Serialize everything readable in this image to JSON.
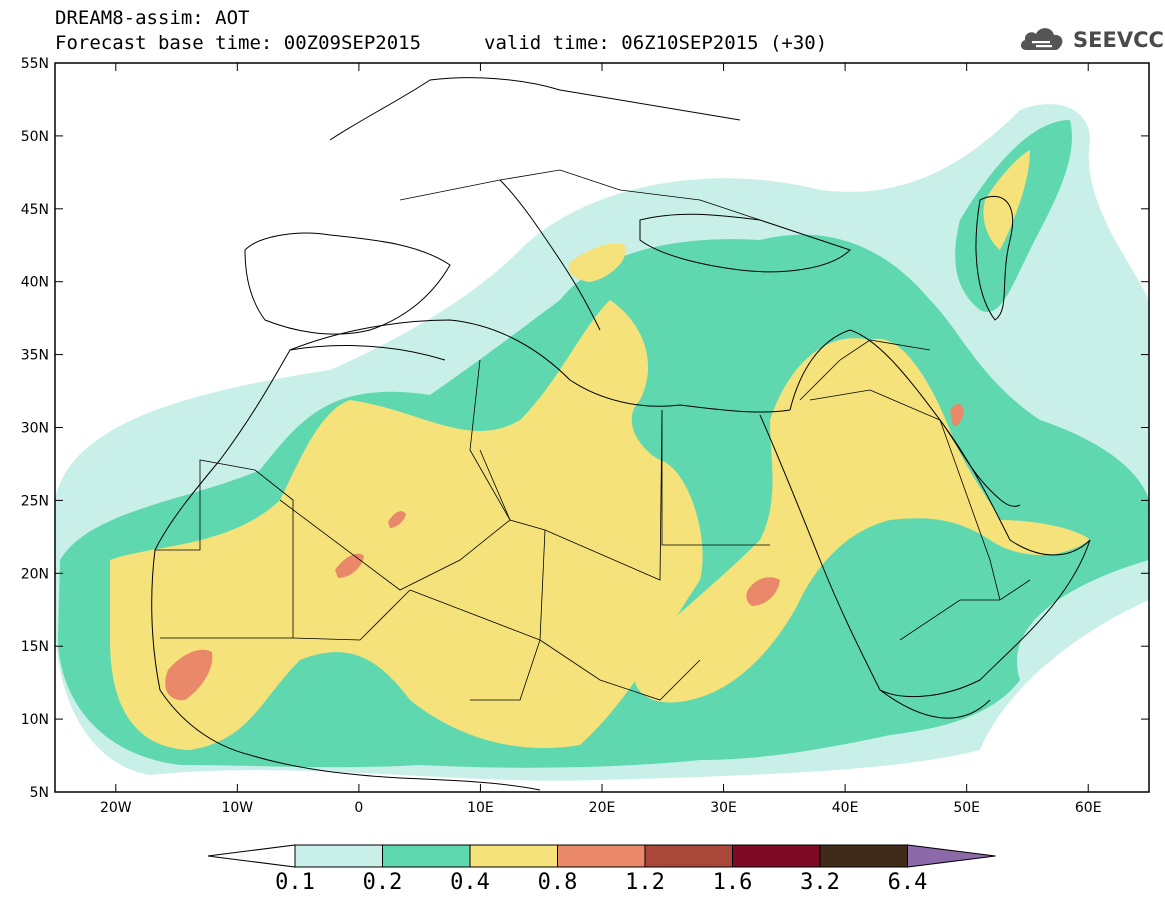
{
  "title": {
    "line1": "DREAM8-assim: AOT",
    "line2": "Forecast base time: 00Z09SEP2015",
    "valid": "valid time: 06Z10SEP2015 (+30)"
  },
  "logo": {
    "text": "SEEVCCC",
    "icon": "cloud-icon"
  },
  "map": {
    "lon_range": [
      -25,
      65
    ],
    "lat_range": [
      5,
      55
    ],
    "x_ticks": [
      {
        "lon": -20,
        "label": "20W"
      },
      {
        "lon": -10,
        "label": "10W"
      },
      {
        "lon": 0,
        "label": "0"
      },
      {
        "lon": 10,
        "label": "10E"
      },
      {
        "lon": 20,
        "label": "20E"
      },
      {
        "lon": 30,
        "label": "30E"
      },
      {
        "lon": 40,
        "label": "40E"
      },
      {
        "lon": 50,
        "label": "50E"
      },
      {
        "lon": 60,
        "label": "60E"
      }
    ],
    "y_ticks": [
      {
        "lat": 55,
        "label": "55N"
      },
      {
        "lat": 50,
        "label": "50N"
      },
      {
        "lat": 45,
        "label": "45N"
      },
      {
        "lat": 40,
        "label": "40N"
      },
      {
        "lat": 35,
        "label": "35N"
      },
      {
        "lat": 30,
        "label": "30N"
      },
      {
        "lat": 25,
        "label": "25N"
      },
      {
        "lat": 20,
        "label": "20N"
      },
      {
        "lat": 15,
        "label": "15N"
      },
      {
        "lat": 10,
        "label": "10N"
      },
      {
        "lat": 5,
        "label": "5N"
      }
    ]
  },
  "colorbar": {
    "levels": [
      "0.1",
      "0.2",
      "0.4",
      "0.8",
      "1.2",
      "1.6",
      "3.2",
      "6.4"
    ],
    "colors": [
      "#ffffff",
      "#c8f0e8",
      "#5fd8b0",
      "#f5e27a",
      "#e9896a",
      "#a8473a",
      "#7d0a25",
      "#3e2a18",
      "#8c6aaa"
    ]
  }
}
